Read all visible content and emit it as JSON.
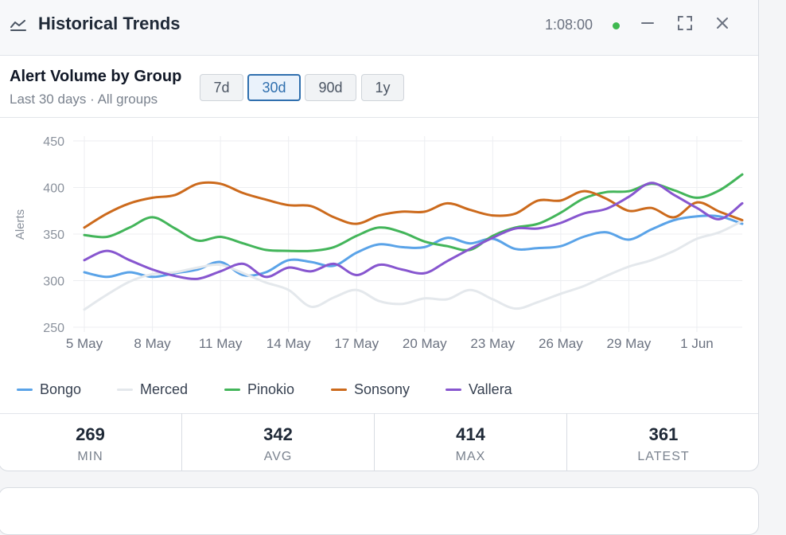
{
  "window": {
    "title": "Historical Trends",
    "elapsed": "1:08:00",
    "status_color": "#3fb950",
    "icons": [
      "line-chart-icon",
      "minimize-icon",
      "expand-icon",
      "close-icon"
    ]
  },
  "chart_header": {
    "title": "Alert Volume by Group",
    "caption": "Last 30 days · All groups",
    "ranges": [
      {
        "label": "7d",
        "active": false
      },
      {
        "label": "30d",
        "active": true
      },
      {
        "label": "90d",
        "active": false
      },
      {
        "label": "1y",
        "active": false
      }
    ]
  },
  "chart_data": {
    "type": "line",
    "title": "Alert Volume by Group",
    "ylabel": "Alerts",
    "xlabel": "",
    "ylim": [
      250,
      450
    ],
    "yticks": [
      450,
      400,
      350,
      300,
      250
    ],
    "grid": true,
    "legend_position": "bottom",
    "x": [
      "5 May",
      "6 May",
      "7 May",
      "8 May",
      "9 May",
      "10 May",
      "11 May",
      "12 May",
      "13 May",
      "14 May",
      "15 May",
      "16 May",
      "17 May",
      "18 May",
      "19 May",
      "20 May",
      "21 May",
      "22 May",
      "23 May",
      "24 May",
      "25 May",
      "26 May",
      "27 May",
      "28 May",
      "29 May",
      "30 May",
      "31 May",
      "1 Jun",
      "2 Jun",
      "3 Jun"
    ],
    "xticks": [
      "5 May",
      "8 May",
      "11 May",
      "14 May",
      "17 May",
      "20 May",
      "23 May",
      "26 May",
      "29 May",
      "1 Jun"
    ],
    "series": [
      {
        "name": "Bongo",
        "color": "#5aa3e8",
        "values": [
          309,
          304,
          309,
          304,
          308,
          312,
          320,
          306,
          309,
          322,
          320,
          316,
          330,
          339,
          336,
          336,
          346,
          340,
          345,
          334,
          335,
          337,
          347,
          352,
          344,
          355,
          365,
          369,
          369,
          361
        ]
      },
      {
        "name": "Merced",
        "color": "#e4e8ec",
        "values": [
          269,
          285,
          299,
          307,
          309,
          314,
          317,
          308,
          298,
          290,
          272,
          282,
          290,
          278,
          275,
          281,
          280,
          290,
          280,
          270,
          277,
          286,
          294,
          305,
          315,
          322,
          332,
          345,
          352,
          364
        ]
      },
      {
        "name": "Pinokio",
        "color": "#43b55a",
        "values": [
          349,
          347,
          357,
          368,
          356,
          343,
          347,
          340,
          333,
          332,
          332,
          336,
          348,
          357,
          352,
          342,
          337,
          333,
          348,
          357,
          361,
          373,
          388,
          395,
          396,
          404,
          397,
          389,
          397,
          414
        ]
      },
      {
        "name": "Sonsony",
        "color": "#cc6a1c",
        "values": [
          357,
          372,
          383,
          389,
          392,
          404,
          404,
          394,
          387,
          381,
          380,
          368,
          361,
          370,
          374,
          374,
          383,
          376,
          370,
          372,
          386,
          386,
          396,
          388,
          375,
          378,
          368,
          384,
          374,
          365
        ]
      },
      {
        "name": "Vallera",
        "color": "#8756cf",
        "values": [
          322,
          332,
          322,
          312,
          305,
          302,
          310,
          318,
          304,
          314,
          310,
          318,
          306,
          317,
          312,
          308,
          321,
          334,
          346,
          356,
          356,
          362,
          372,
          377,
          390,
          405,
          392,
          378,
          366,
          383
        ]
      }
    ]
  },
  "stats": [
    {
      "value": "269",
      "label": "MIN"
    },
    {
      "value": "342",
      "label": "AVG"
    },
    {
      "value": "414",
      "label": "MAX"
    },
    {
      "value": "361",
      "label": "LATEST"
    }
  ]
}
